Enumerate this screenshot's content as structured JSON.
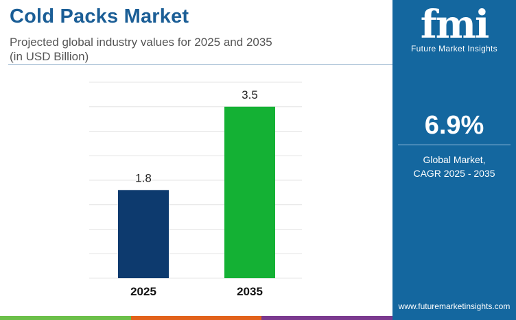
{
  "header": {
    "title": "Cold Packs Market",
    "subtitle_line1": "Projected global industry values for 2025 and 2035",
    "subtitle_line2": "(in USD Billion)"
  },
  "chart_data": {
    "type": "bar",
    "categories": [
      "2025",
      "2035"
    ],
    "values": [
      1.8,
      3.5
    ],
    "value_labels": [
      "1.8",
      "3.5"
    ],
    "bar_colors": [
      "#0d3a6e",
      "#14b134"
    ],
    "ylim": [
      0,
      4.0
    ],
    "grid": true,
    "title": "",
    "xlabel": "",
    "ylabel": ""
  },
  "sidebar": {
    "logo_text": "fmi",
    "logo_subtitle": "Future Market Insights",
    "cagr_value": "6.9%",
    "cagr_label_line1": "Global Market,",
    "cagr_label_line2": "CAGR 2025 - 2035",
    "website": "www.futuremarketinsights.com"
  },
  "colors": {
    "title": "#1b5e96",
    "sidebar_bg": "#14679f",
    "stripe": [
      "#6cc04a",
      "#e2621b",
      "#7b3a8f"
    ]
  }
}
